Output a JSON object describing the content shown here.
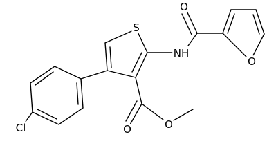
{
  "labels": [
    "S",
    "NH",
    "O",
    "O",
    "O",
    "O",
    "Cl"
  ]
}
